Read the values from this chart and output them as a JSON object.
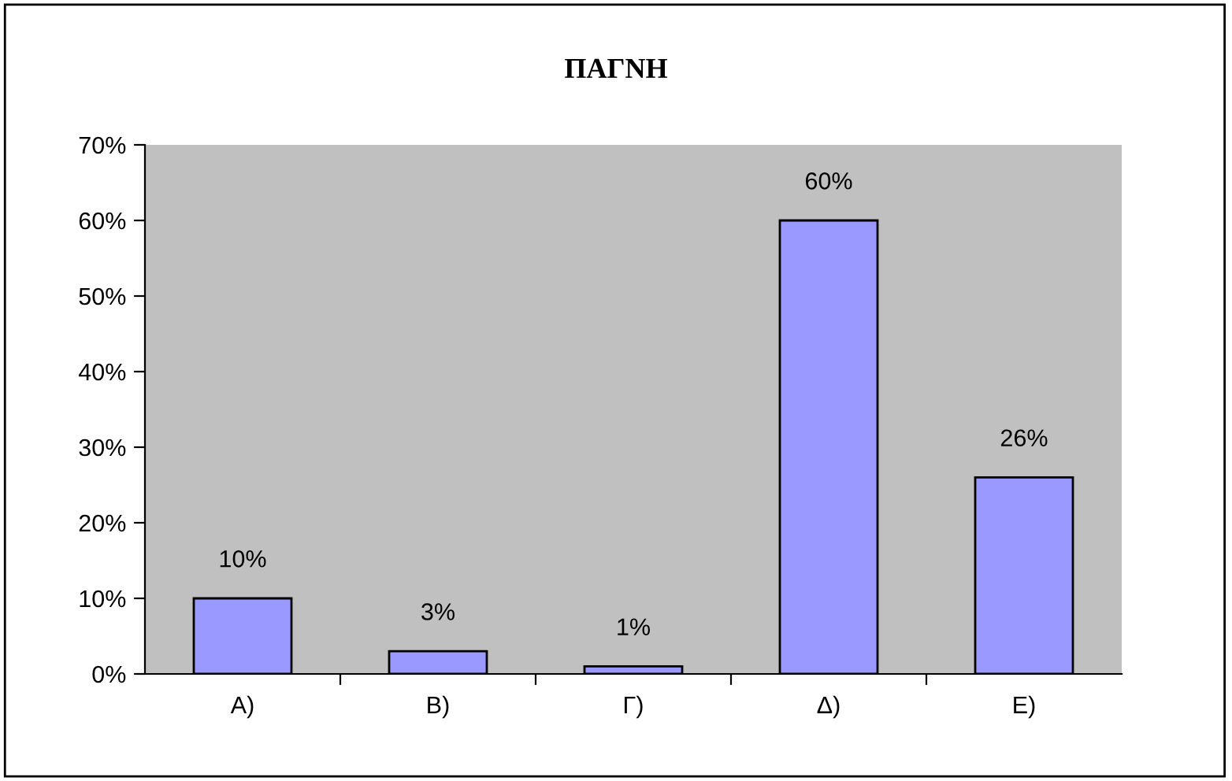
{
  "chart_data": {
    "type": "bar",
    "title": "ΠΑΓΝΗ",
    "categories": [
      "Α)",
      "Β)",
      "Γ)",
      "Δ)",
      "Ε)"
    ],
    "values": [
      10,
      3,
      1,
      60,
      26
    ],
    "value_labels": [
      "10%",
      "3%",
      "1%",
      "60%",
      "26%"
    ],
    "color": "#9999ff",
    "ylim": [
      0,
      70
    ],
    "yticks": [
      {
        "value": 0,
        "label": "0%"
      },
      {
        "value": 10,
        "label": "10%"
      },
      {
        "value": 20,
        "label": "20%"
      },
      {
        "value": 30,
        "label": "30%"
      },
      {
        "value": 40,
        "label": "40%"
      },
      {
        "value": 50,
        "label": "50%"
      },
      {
        "value": 60,
        "label": "60%"
      },
      {
        "value": 70,
        "label": "70%"
      }
    ]
  }
}
